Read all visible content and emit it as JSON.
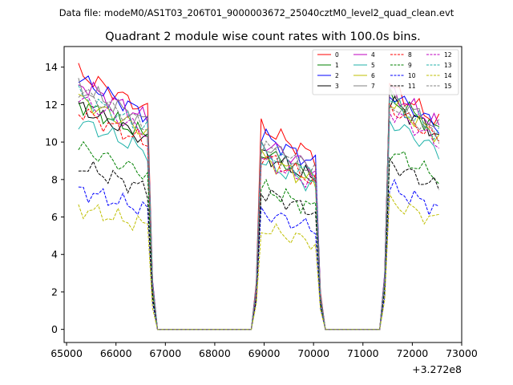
{
  "chart_data": {
    "type": "line",
    "suptitle": "Data file: modeM0/AS1T03_206T01_9000003672_25040cztM0_level2_quad_clean.evt",
    "title": "Quadrant 2 module wise count rates with 100.0s bins.",
    "xlabel": "",
    "ylabel": "",
    "x_offset_label": "+3.272e8",
    "xlim": [
      64950,
      73000
    ],
    "ylim": [
      -0.7,
      15.1
    ],
    "xticks": [
      65000,
      66000,
      67000,
      68000,
      69000,
      70000,
      71000,
      72000,
      73000
    ],
    "yticks": [
      0,
      2,
      4,
      6,
      8,
      10,
      12,
      14
    ],
    "legend_position": "top-right",
    "segments": [
      {
        "start": 65240,
        "end": 66640
      },
      {
        "start": 68940,
        "end": 70040
      },
      {
        "start": 71540,
        "end": 72540
      }
    ],
    "series": [
      {
        "name": "0",
        "color": "#ff0000",
        "dash": "solid",
        "levels": [
          12.7,
          10.0,
          12.0
        ]
      },
      {
        "name": "1",
        "color": "#008000",
        "dash": "solid",
        "levels": [
          11.2,
          8.8,
          11.5
        ]
      },
      {
        "name": "2",
        "color": "#0000ff",
        "dash": "solid",
        "levels": [
          12.4,
          9.6,
          11.7
        ]
      },
      {
        "name": "3",
        "color": "#000000",
        "dash": "solid",
        "levels": [
          11.0,
          8.7,
          11.3
        ]
      },
      {
        "name": "4",
        "color": "#bf00bf",
        "dash": "solid",
        "levels": [
          12.2,
          9.3,
          11.8
        ]
      },
      {
        "name": "5",
        "color": "#20b2aa",
        "dash": "solid",
        "levels": [
          10.3,
          8.3,
          10.3
        ]
      },
      {
        "name": "6",
        "color": "#bfbf00",
        "dash": "solid",
        "levels": [
          11.4,
          8.5,
          11.2
        ]
      },
      {
        "name": "7",
        "color": "#808080",
        "dash": "solid",
        "levels": [
          12.0,
          9.2,
          11.6
        ]
      },
      {
        "name": "8",
        "color": "#ff0000",
        "dash": "dashed",
        "levels": [
          10.8,
          8.6,
          11.0
        ]
      },
      {
        "name": "9",
        "color": "#008000",
        "dash": "dashed",
        "levels": [
          9.0,
          7.0,
          8.8
        ]
      },
      {
        "name": "10",
        "color": "#0000ff",
        "dash": "dashed",
        "levels": [
          6.9,
          5.8,
          7.0
        ]
      },
      {
        "name": "11",
        "color": "#000000",
        "dash": "dashed",
        "levels": [
          8.1,
          6.8,
          8.2
        ]
      },
      {
        "name": "12",
        "color": "#bf00bf",
        "dash": "dashed",
        "levels": [
          11.4,
          8.4,
          10.8
        ]
      },
      {
        "name": "13",
        "color": "#20b2aa",
        "dash": "dashed",
        "levels": [
          11.6,
          8.9,
          11.3
        ]
      },
      {
        "name": "14",
        "color": "#bfbf00",
        "dash": "dashed",
        "levels": [
          6.0,
          5.0,
          6.3
        ]
      },
      {
        "name": "15",
        "color": "#808080",
        "dash": "dashed",
        "levels": [
          11.8,
          9.1,
          11.2
        ]
      }
    ]
  }
}
